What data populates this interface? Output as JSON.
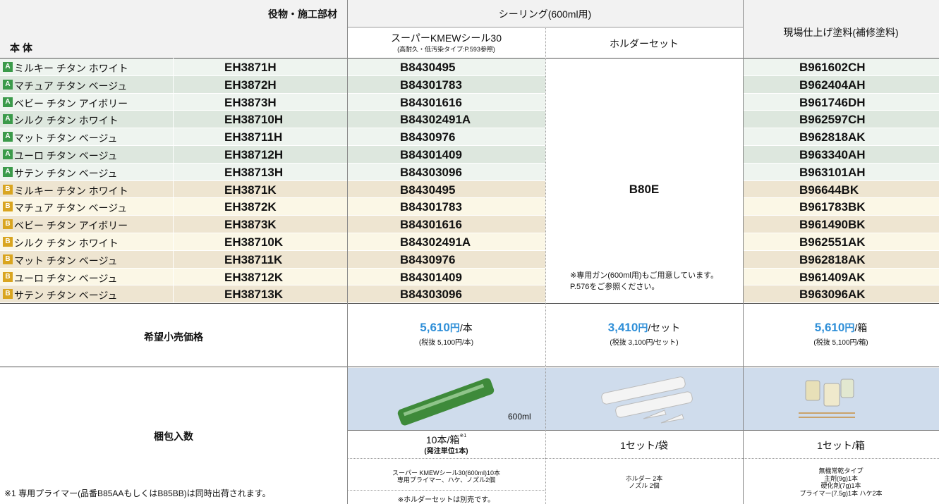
{
  "header": {
    "parts_label": "役物・施工部材",
    "body_label": "本 体",
    "sealing_label": "シーリング(600ml用)",
    "sealant_name": "スーパーKMEWシール30",
    "sealant_note": "(高耐久・低汚染タイプ:P.593参照)",
    "holder_label": "ホルダーセット",
    "paint_label": "現場仕上げ塗料(補修塗料)"
  },
  "rows": [
    {
      "grade": "A",
      "name": "ミルキー チタン ホワイト",
      "part": "EH3871H",
      "sealant": "B8430495",
      "paint": "B961602CH"
    },
    {
      "grade": "A",
      "name": "マチュア チタン ベージュ",
      "part": "EH3872H",
      "sealant": "B84301783",
      "paint": "B962404AH"
    },
    {
      "grade": "A",
      "name": "ベビー チタン アイボリー",
      "part": "EH3873H",
      "sealant": "B84301616",
      "paint": "B961746DH"
    },
    {
      "grade": "A",
      "name": "シルク チタン ホワイト",
      "part": "EH38710H",
      "sealant": "B84302491A",
      "paint": "B962597CH"
    },
    {
      "grade": "A",
      "name": "マット チタン ベージュ",
      "part": "EH38711H",
      "sealant": "B8430976",
      "paint": "B962818AK"
    },
    {
      "grade": "A",
      "name": "ユーロ チタン ベージュ",
      "part": "EH38712H",
      "sealant": "B84301409",
      "paint": "B963340AH"
    },
    {
      "grade": "A",
      "name": "サテン チタン ベージュ",
      "part": "EH38713H",
      "sealant": "B84303096",
      "paint": "B963101AH"
    },
    {
      "grade": "B",
      "name": "ミルキー チタン ホワイト",
      "part": "EH3871K",
      "sealant": "B8430495",
      "paint": "B96644BK"
    },
    {
      "grade": "B",
      "name": "マチュア チタン ベージュ",
      "part": "EH3872K",
      "sealant": "B84301783",
      "paint": "B961783BK"
    },
    {
      "grade": "B",
      "name": "ベビー チタン アイボリー",
      "part": "EH3873K",
      "sealant": "B84301616",
      "paint": "B961490BK"
    },
    {
      "grade": "B",
      "name": "シルク チタン ホワイト",
      "part": "EH38710K",
      "sealant": "B84302491A",
      "paint": "B962551AK"
    },
    {
      "grade": "B",
      "name": "マット チタン ベージュ",
      "part": "EH38711K",
      "sealant": "B8430976",
      "paint": "B962818AK"
    },
    {
      "grade": "B",
      "name": "ユーロ チタン ベージュ",
      "part": "EH38712K",
      "sealant": "B84301409",
      "paint": "B961409AK"
    },
    {
      "grade": "B",
      "name": "サテン チタン ベージュ",
      "part": "EH38713K",
      "sealant": "B84303096",
      "paint": "B963096AK"
    }
  ],
  "holder": {
    "code": "B80E",
    "note": [
      "※専用ガン(600ml用)もご用意しています。",
      "P.576をご参照ください。"
    ]
  },
  "price": {
    "label": "希望小売価格",
    "items": [
      {
        "amount": "5,610",
        "currency": "円",
        "unit": "/本",
        "excl": "(税抜 5,100円/本)"
      },
      {
        "amount": "3,410",
        "currency": "円",
        "unit": "/セット",
        "excl": "(税抜 3,100円/セット)"
      },
      {
        "amount": "5,610",
        "currency": "円",
        "unit": "/箱",
        "excl": "(税抜 5,100円/箱)"
      }
    ]
  },
  "packaging": {
    "label": "梱包入数",
    "volume": "600ml",
    "items": [
      {
        "qty": "10本/箱",
        "qty_mark": "※1",
        "qty_note": "(発注単位1本)",
        "contents": [
          "スーパー KMEWシール30(600ml)10本",
          "専用プライマー、ハケ、ノズル2個"
        ]
      },
      {
        "qty": "1セット/袋",
        "contents": [
          "ホルダー 2本",
          "ノズル 2個"
        ]
      },
      {
        "qty": "1セット/箱",
        "contents": [
          "無機常乾タイプ",
          "主剤(9g)1本",
          "硬化剤(7g)1本",
          "プライマー(7.5g)1本 ハケ2本"
        ]
      }
    ],
    "separate_note": "※ホルダーセットは別売です。",
    "footnote": "※1 専用プライマー(品番B85AAもしくはB85BB)は同時出荷されます。"
  }
}
